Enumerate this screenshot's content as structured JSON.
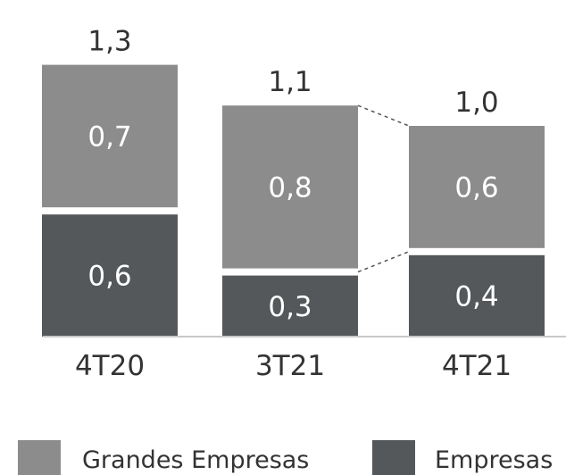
{
  "chart_data": {
    "type": "bar",
    "stacked": true,
    "categories": [
      "4T20",
      "3T21",
      "4T21"
    ],
    "series": [
      {
        "name": "Empresas",
        "values": [
          0.6,
          0.3,
          0.4
        ],
        "labels": [
          "0,6",
          "0,3",
          "0,4"
        ]
      },
      {
        "name": "Grandes Empresas",
        "values": [
          0.7,
          0.8,
          0.6
        ],
        "labels": [
          "0,7",
          "0,8",
          "0,6"
        ]
      }
    ],
    "totals": [
      1.3,
      1.1,
      1.0
    ],
    "total_labels": [
      "1,3",
      "1,1",
      "1,0"
    ],
    "colors": {
      "Empresas": "#54585a",
      "Grandes Empresas": "#8c8c8c"
    },
    "legend": "bottom",
    "grid": false,
    "connector_between": [
      "3T21",
      "4T21"
    ]
  }
}
